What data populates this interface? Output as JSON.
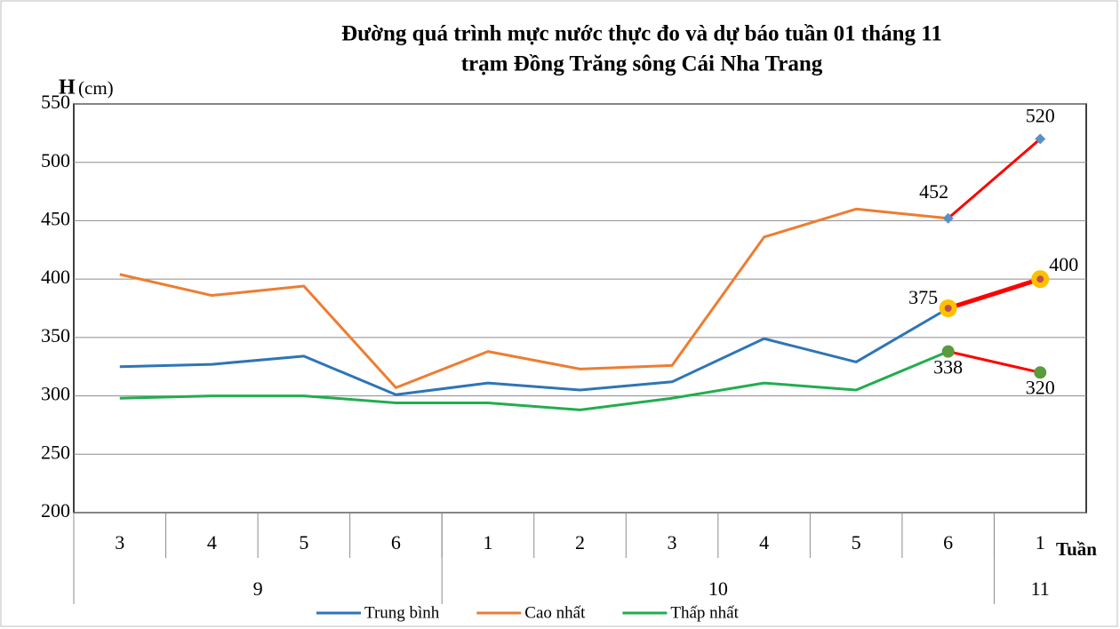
{
  "chart_data": {
    "type": "line",
    "title": "Đường quá trình mực nước thực đo và dự báo tuần  01 tháng 11",
    "subtitle": "trạm Đồng Trăng sông Cái Nha Trang",
    "ylabel": "H",
    "yunit": "(cm)",
    "xlabel": "Tuần",
    "categories": [
      "3",
      "4",
      "5",
      "6",
      "1",
      "2",
      "3",
      "4",
      "5",
      "6",
      "1"
    ],
    "groups": [
      "9",
      "10",
      "11"
    ],
    "group_sizes": [
      4,
      6,
      1
    ],
    "ylim": [
      200,
      550
    ],
    "yticks": [
      200,
      250,
      300,
      350,
      400,
      450,
      500,
      550
    ],
    "grid": true,
    "legend": "bottom",
    "series": [
      {
        "name": "Trung bình",
        "color": "#2e75b6",
        "values": [
          325,
          327,
          334,
          301,
          311,
          305,
          312,
          349,
          329,
          375,
          null
        ]
      },
      {
        "name": "Cao nhất",
        "color": "#ed7d31",
        "values": [
          404,
          386,
          394,
          307,
          338,
          323,
          326,
          436,
          460,
          452,
          null
        ]
      },
      {
        "name": "Thấp nhất",
        "color": "#22ad4f",
        "values": [
          298,
          300,
          300,
          294,
          294,
          288,
          298,
          311,
          305,
          338,
          null
        ]
      }
    ],
    "forecast": [
      {
        "color": "#ff0000",
        "marker": "diamond",
        "marker_color": "#5b8fc7",
        "values": [
          null,
          null,
          null,
          null,
          null,
          null,
          null,
          null,
          null,
          452,
          520
        ]
      },
      {
        "color": "#ff0000",
        "marker": "circle",
        "marker_color": "#ffc000",
        "values": [
          null,
          null,
          null,
          null,
          null,
          null,
          null,
          null,
          null,
          375,
          400
        ]
      },
      {
        "color": "#ff0000",
        "marker": "circle",
        "marker_color": "#5a9b3c",
        "values": [
          null,
          null,
          null,
          null,
          null,
          null,
          null,
          null,
          null,
          338,
          320
        ]
      }
    ]
  }
}
